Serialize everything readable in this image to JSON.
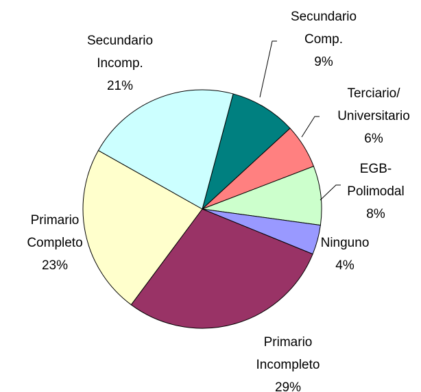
{
  "chart_data": {
    "type": "pie",
    "categories": [
      [
        "Secundario",
        "Comp."
      ],
      [
        "Terciario/",
        "Universitario"
      ],
      [
        "EGB-",
        "Polimodal"
      ],
      [
        "Ninguno"
      ],
      [
        "Primario",
        "Incompleto"
      ],
      [
        "Primario",
        "Completo"
      ],
      [
        "Secundario",
        "Incomp."
      ]
    ],
    "values": [
      9,
      6,
      8,
      4,
      29,
      23,
      21
    ],
    "value_labels": [
      "9%",
      "6%",
      "8%",
      "4%",
      "29%",
      "23%",
      "21%"
    ],
    "colors": [
      "#008080",
      "#ff8080",
      "#ccffcc",
      "#9999ff",
      "#993366",
      "#ffffcc",
      "#ccffff"
    ]
  }
}
